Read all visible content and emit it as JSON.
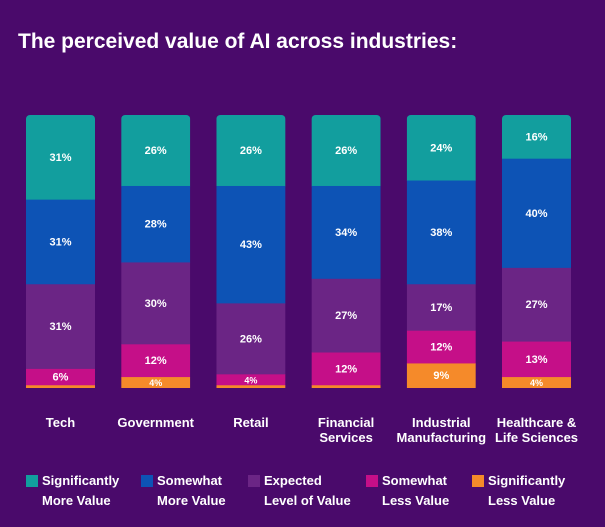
{
  "chart_data": {
    "type": "bar",
    "stacked": true,
    "title": "The perceived value of AI across industries:",
    "categories": [
      [
        "Tech"
      ],
      [
        "Government"
      ],
      [
        "Retail"
      ],
      [
        "Financial",
        "Services"
      ],
      [
        "Industrial",
        "Manufacturing"
      ],
      [
        "Healthcare &",
        "Life Sciences"
      ]
    ],
    "series": [
      {
        "name": "Significantly More Value",
        "legend_lines": [
          "Significantly",
          "More Value"
        ],
        "color": "#129e9e",
        "values": [
          31,
          26,
          26,
          26,
          24,
          16
        ],
        "labels": [
          "31%",
          "26%",
          "26%",
          "26%",
          "24%",
          "16%"
        ]
      },
      {
        "name": "Somewhat More Value",
        "legend_lines": [
          "Somewhat",
          "More Value"
        ],
        "color": "#0d53b5",
        "values": [
          31,
          28,
          43,
          34,
          38,
          40
        ],
        "labels": [
          "31%",
          "28%",
          "43%",
          "34%",
          "38%",
          "40%"
        ]
      },
      {
        "name": "Expected Level of Value",
        "legend_lines": [
          "Expected",
          "Level of Value"
        ],
        "color": "#6b2585",
        "values": [
          31,
          30,
          26,
          27,
          17,
          27
        ],
        "labels": [
          "31%",
          "30%",
          "26%",
          "27%",
          "17%",
          "27%"
        ]
      },
      {
        "name": "Somewhat Less Value",
        "legend_lines": [
          "Somewhat",
          "Less Value"
        ],
        "color": "#c50f88",
        "values": [
          6,
          12,
          4,
          12,
          12,
          13
        ],
        "labels": [
          "6%",
          "12%",
          "4%",
          "12%",
          "12%",
          "13%"
        ]
      },
      {
        "name": "Significantly Less Value",
        "legend_lines": [
          "Significantly",
          "Less Value"
        ],
        "color": "#f58a2a",
        "values": [
          1,
          4,
          1,
          1,
          9,
          4
        ],
        "labels": [
          "",
          "4%",
          "",
          "",
          "9%",
          "4%"
        ]
      }
    ],
    "legend_position": "bottom",
    "grid": false
  }
}
